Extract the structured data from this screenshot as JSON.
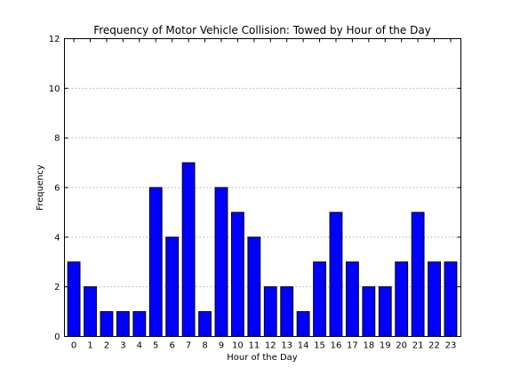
{
  "chart_data": {
    "type": "bar",
    "title": "Frequency of Motor Vehicle Collision: Towed by Hour of the Day",
    "xlabel": "Hour of the Day",
    "ylabel": "Frequency",
    "categories": [
      "0",
      "1",
      "2",
      "3",
      "4",
      "5",
      "6",
      "7",
      "8",
      "9",
      "10",
      "11",
      "12",
      "13",
      "14",
      "15",
      "16",
      "17",
      "18",
      "19",
      "20",
      "21",
      "22",
      "23"
    ],
    "values": [
      3,
      2,
      1,
      1,
      1,
      6,
      4,
      7,
      1,
      6,
      5,
      4,
      2,
      2,
      1,
      3,
      5,
      3,
      2,
      2,
      3,
      5,
      3,
      3
    ],
    "ylim": [
      0,
      12
    ],
    "yticks": [
      0,
      2,
      4,
      6,
      8,
      10,
      12
    ],
    "grid": "horizontal-dotted",
    "bar_color": "#0000ff",
    "legend": "none"
  }
}
